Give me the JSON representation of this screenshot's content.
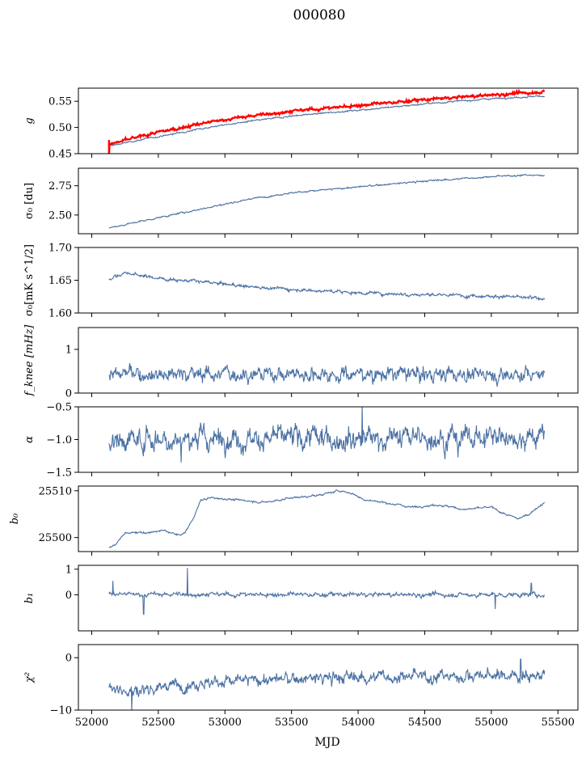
{
  "figure": {
    "title": "000080"
  },
  "colors": {
    "series": "#4c72a4",
    "overlay": "#ff0000",
    "axes": "#000000"
  },
  "chart_data": [
    {
      "type": "line",
      "ylabel": "g",
      "ylim": [
        0.45,
        0.575
      ],
      "yticks": [
        "0.45",
        "0.50",
        "0.55"
      ],
      "ytick_values": [
        0.45,
        0.5,
        0.55
      ],
      "trend": {
        "x": [
          52130,
          52200,
          52400,
          52600,
          52800,
          53000,
          53200,
          53500,
          54000,
          54500,
          55000,
          55400
        ],
        "y": [
          0.465,
          0.468,
          0.478,
          0.487,
          0.497,
          0.505,
          0.512,
          0.522,
          0.533,
          0.545,
          0.555,
          0.56
        ]
      },
      "overlay_trend": {
        "x": [
          52130,
          52200,
          52400,
          52600,
          52800,
          53000,
          53200,
          53500,
          54000,
          54500,
          55000,
          55400
        ],
        "y": [
          0.468,
          0.472,
          0.485,
          0.496,
          0.506,
          0.515,
          0.522,
          0.531,
          0.542,
          0.553,
          0.562,
          0.568
        ]
      },
      "noise": 0.0008,
      "overlay_noise": 0.0015
    },
    {
      "type": "line",
      "ylabel": "σ₀ [du]",
      "ylim": [
        2.34,
        2.9
      ],
      "yticks": [
        "2.50",
        "2.75"
      ],
      "ytick_values": [
        2.5,
        2.75
      ],
      "trend": {
        "x": [
          52130,
          52300,
          52600,
          52900,
          53200,
          53500,
          53800,
          54100,
          54500,
          54900,
          55200,
          55400
        ],
        "y": [
          2.39,
          2.43,
          2.5,
          2.57,
          2.64,
          2.69,
          2.72,
          2.75,
          2.79,
          2.82,
          2.84,
          2.84
        ]
      },
      "noise": 0.004
    },
    {
      "type": "line",
      "ylabel": "σ₀[mK s^1/2]",
      "ylim": [
        1.6,
        1.7
      ],
      "yticks": [
        "1.60",
        "1.65",
        "1.70"
      ],
      "ytick_values": [
        1.6,
        1.65,
        1.7
      ],
      "trend": {
        "x": [
          52130,
          52250,
          52500,
          52800,
          53200,
          53600,
          54000,
          54500,
          55000,
          55400
        ],
        "y": [
          1.652,
          1.661,
          1.653,
          1.648,
          1.64,
          1.635,
          1.631,
          1.628,
          1.626,
          1.622
        ]
      },
      "noise": 0.0015
    },
    {
      "type": "line",
      "ylabel": "f_knee [mHz]",
      "ylim": [
        0,
        1.5
      ],
      "yticks": [
        "0",
        "1"
      ],
      "ytick_values": [
        0,
        1
      ],
      "trend": {
        "x": [
          52130,
          55400
        ],
        "y": [
          0.45,
          0.43
        ]
      },
      "noise": 0.1
    },
    {
      "type": "line",
      "ylabel": "α",
      "ylim": [
        -1.5,
        -0.5
      ],
      "yticks": [
        "−1.5",
        "−1.0",
        "−0.5"
      ],
      "ytick_values": [
        -1.5,
        -1.0,
        -0.5
      ],
      "trend": {
        "x": [
          52130,
          55400
        ],
        "y": [
          -1.0,
          -0.95
        ]
      },
      "noise": 0.1
    },
    {
      "type": "line",
      "ylabel": "b₀",
      "ylim": [
        25497,
        25511
      ],
      "yticks": [
        "25500",
        "25510"
      ],
      "ytick_values": [
        25500,
        25510
      ],
      "trend": {
        "x": [
          52130,
          52180,
          52250,
          52400,
          52550,
          52650,
          52700,
          52760,
          52820,
          52900,
          53100,
          53300,
          53500,
          53700,
          53850,
          53950,
          54050,
          54200,
          54400,
          54600,
          54800,
          55000,
          55100,
          55200,
          55280,
          55400
        ],
        "y": [
          25498,
          25498.5,
          25501,
          25501,
          25501.5,
          25500.5,
          25501,
          25504,
          25508,
          25508.5,
          25508,
          25507.5,
          25508.5,
          25509,
          25510,
          25509.5,
          25508,
          25507.5,
          25506.5,
          25507,
          25506,
          25506.5,
          25505,
          25504,
          25505,
          25507.5
        ]
      },
      "noise": 0.12
    },
    {
      "type": "line",
      "ylabel": "b₁",
      "ylim": [
        -1.4,
        1.15
      ],
      "yticks": [
        "0",
        "1"
      ],
      "ytick_values": [
        0,
        1
      ],
      "trend": {
        "x": [
          52130,
          55400
        ],
        "y": [
          0.02,
          0.0
        ]
      },
      "noise": 0.05
    },
    {
      "type": "line",
      "ylabel": "χ²",
      "ylim": [
        -10,
        2.5
      ],
      "yticks": [
        "−10",
        "0"
      ],
      "ytick_values": [
        -10,
        0
      ],
      "trend": {
        "x": [
          52130,
          52300,
          52500,
          52800,
          53200,
          53600,
          54000,
          54500,
          55000,
          55400
        ],
        "y": [
          -5.5,
          -6.5,
          -5.5,
          -4.8,
          -4.3,
          -4.0,
          -3.7,
          -3.6,
          -3.4,
          -3.3
        ]
      },
      "noise": 0.7
    }
  ],
  "x_axis": {
    "label": "MJD",
    "xlim": [
      51900,
      55650
    ],
    "ticks": [
      "52000",
      "52500",
      "53000",
      "53500",
      "54000",
      "54500",
      "55000",
      "55500"
    ],
    "tick_values": [
      52000,
      52500,
      53000,
      53500,
      54000,
      54500,
      55000,
      55500
    ]
  }
}
